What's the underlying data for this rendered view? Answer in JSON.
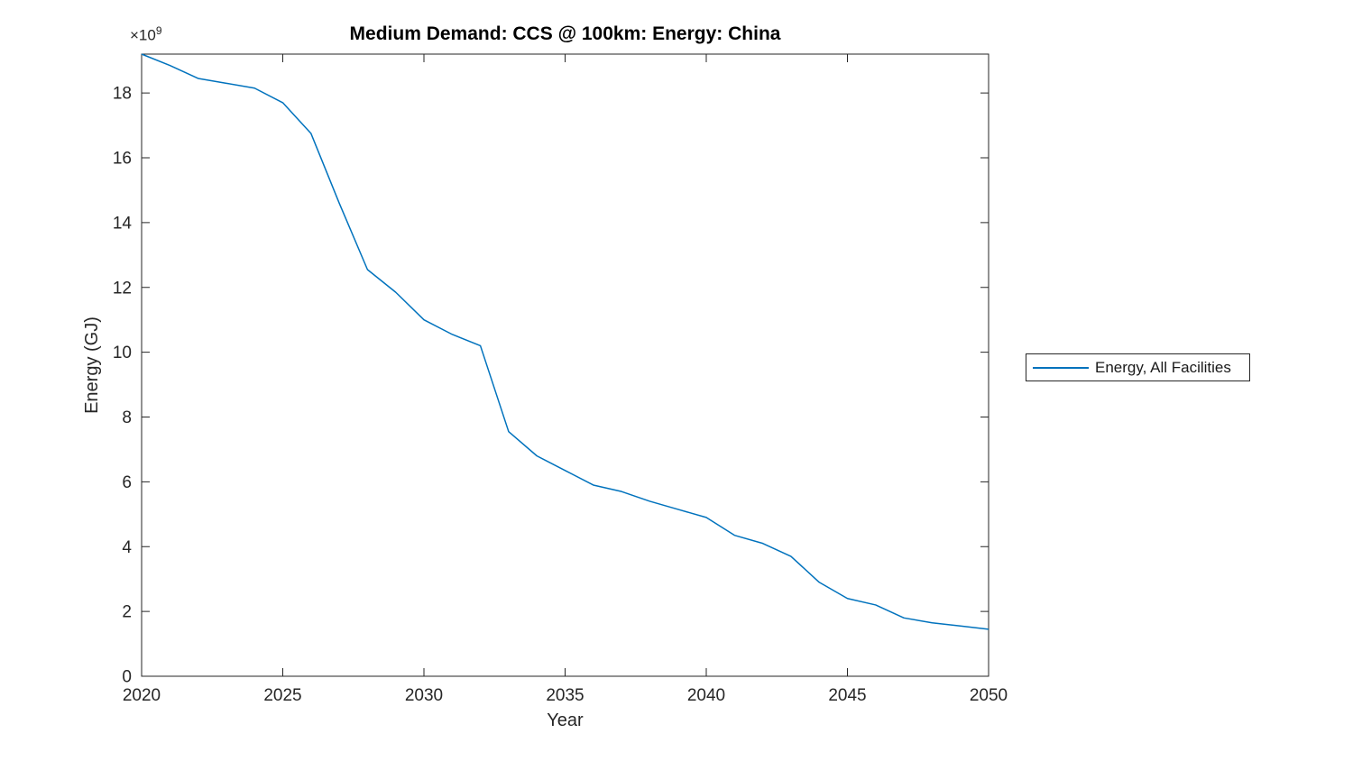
{
  "figure": {
    "title": "Medium Demand: CCS @ 100km: Energy: China",
    "x_axis_label": "Year",
    "y_axis_label": "Energy (GJ)",
    "y_exponent_base": "×10",
    "y_exponent_power": "9",
    "legend": {
      "items": [
        {
          "label": "Energy, All Facilities",
          "color": "#0072BD"
        }
      ]
    },
    "colors": {
      "line": "#0072BD",
      "axis": "#262626",
      "tick_text": "#262626",
      "title_text": "#000000",
      "background": "#ffffff",
      "legend_border": "#262626"
    }
  },
  "chart_data": {
    "type": "line",
    "title": "Medium Demand: CCS @ 100km: Energy: China",
    "xlabel": "Year",
    "ylabel": "Energy (GJ)",
    "y_unit_note": "values in GJ × 10^9",
    "x": [
      2020,
      2021,
      2022,
      2023,
      2024,
      2025,
      2026,
      2027,
      2028,
      2029,
      2030,
      2031,
      2032,
      2033,
      2034,
      2035,
      2036,
      2037,
      2038,
      2039,
      2040,
      2041,
      2042,
      2043,
      2044,
      2045,
      2046,
      2047,
      2048,
      2049,
      2050
    ],
    "series": [
      {
        "name": "Energy, All Facilities",
        "color": "#0072BD",
        "values_e9": [
          19.2,
          18.85,
          18.45,
          18.3,
          18.15,
          17.7,
          16.75,
          14.6,
          12.55,
          11.85,
          11.0,
          10.55,
          10.2,
          7.55,
          6.8,
          6.35,
          5.9,
          5.7,
          5.4,
          5.15,
          4.9,
          4.35,
          4.1,
          3.7,
          2.9,
          2.4,
          2.2,
          1.8,
          1.65,
          1.55,
          1.45
        ]
      }
    ],
    "xlim": [
      2020,
      2050
    ],
    "ylim_e9": [
      0,
      19.2
    ],
    "x_ticks": [
      2020,
      2025,
      2030,
      2035,
      2040,
      2045,
      2050
    ],
    "y_ticks_e9": [
      0,
      2,
      4,
      6,
      8,
      10,
      12,
      14,
      16,
      18
    ],
    "grid": false,
    "legend_position": "right-outside"
  }
}
